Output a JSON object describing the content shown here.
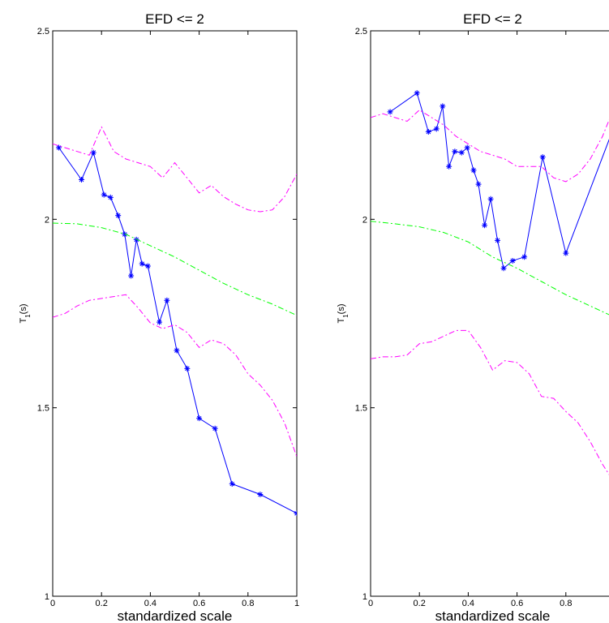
{
  "chart_data": [
    {
      "type": "line",
      "title": "EFD <= 2",
      "xlabel": "standardized scale",
      "ylabel": "T",
      "ylabel_sub": "1",
      "ylabel_suffix": "(s)",
      "xlim": [
        0,
        1
      ],
      "ylim": [
        1,
        2.5
      ],
      "xticks": [
        0,
        0.2,
        0.4,
        0.6,
        0.8,
        1
      ],
      "xtick_labels": [
        "0",
        "0.2",
        "0.4",
        "0.6",
        "0.8",
        "1"
      ],
      "yticks": [
        1,
        1.5,
        2,
        2.5
      ],
      "ytick_labels": [
        "1",
        "1.5",
        "2",
        "2.5"
      ],
      "grid": false,
      "series": [
        {
          "style": "solid-star",
          "color": "#0000ff",
          "x": [
            0.025,
            0.118,
            0.167,
            0.21,
            0.237,
            0.268,
            0.295,
            0.321,
            0.343,
            0.366,
            0.39,
            0.437,
            0.468,
            0.508,
            0.551,
            0.6,
            0.665,
            0.735,
            0.85,
            1.0
          ],
          "y": [
            2.19,
            2.105,
            2.177,
            2.065,
            2.058,
            2.01,
            1.96,
            1.85,
            1.946,
            1.882,
            1.876,
            1.727,
            1.785,
            1.652,
            1.604,
            1.472,
            1.445,
            1.298,
            1.27,
            1.22
          ]
        },
        {
          "style": "dashdot",
          "color": "#00ff00",
          "x": [
            0,
            0.1,
            0.2,
            0.3,
            0.4,
            0.5,
            0.6,
            0.7,
            0.8,
            0.9,
            1.0
          ],
          "y": [
            1.99,
            1.988,
            1.978,
            1.96,
            1.93,
            1.9,
            1.865,
            1.83,
            1.8,
            1.775,
            1.745
          ]
        },
        {
          "style": "dashdot",
          "color": "#ff00ff",
          "x": [
            0,
            0.05,
            0.1,
            0.15,
            0.2,
            0.25,
            0.3,
            0.35,
            0.4,
            0.45,
            0.5,
            0.55,
            0.6,
            0.65,
            0.7,
            0.75,
            0.8,
            0.85,
            0.9,
            0.95,
            1.0
          ],
          "y": [
            2.2,
            2.19,
            2.18,
            2.17,
            2.245,
            2.18,
            2.16,
            2.15,
            2.14,
            2.11,
            2.15,
            2.11,
            2.07,
            2.09,
            2.06,
            2.04,
            2.025,
            2.02,
            2.025,
            2.06,
            2.12
          ]
        },
        {
          "style": "dashdot",
          "color": "#ff00ff",
          "x": [
            0,
            0.05,
            0.1,
            0.15,
            0.2,
            0.25,
            0.3,
            0.35,
            0.4,
            0.45,
            0.5,
            0.55,
            0.6,
            0.65,
            0.7,
            0.75,
            0.8,
            0.85,
            0.9,
            0.95,
            1.0
          ],
          "y": [
            1.74,
            1.75,
            1.77,
            1.785,
            1.79,
            1.795,
            1.8,
            1.765,
            1.725,
            1.71,
            1.72,
            1.7,
            1.66,
            1.68,
            1.67,
            1.64,
            1.59,
            1.56,
            1.52,
            1.46,
            1.37
          ]
        }
      ]
    },
    {
      "type": "line",
      "title": "EFD <= 2",
      "xlabel": "standardized scale",
      "ylabel": "T",
      "ylabel_sub": "1",
      "ylabel_suffix": "(s)",
      "xlim": [
        0,
        1
      ],
      "ylim": [
        1,
        2.5
      ],
      "xticks": [
        0,
        0.2,
        0.4,
        0.6,
        0.8
      ],
      "xtick_labels": [
        "0",
        "0.2",
        "0.4",
        "0.6",
        "0.8"
      ],
      "yticks": [
        1,
        1.5,
        2,
        2.5
      ],
      "ytick_labels": [
        "1",
        "1.5",
        "2",
        "2.5"
      ],
      "grid": false,
      "series": [
        {
          "style": "solid-star",
          "color": "#0000ff",
          "x": [
            0.08,
            0.19,
            0.237,
            0.27,
            0.295,
            0.321,
            0.345,
            0.373,
            0.396,
            0.422,
            0.442,
            0.467,
            0.492,
            0.52,
            0.545,
            0.582,
            0.63,
            0.705,
            0.8,
            1.0
          ],
          "y": [
            2.285,
            2.335,
            2.232,
            2.24,
            2.3,
            2.14,
            2.18,
            2.177,
            2.19,
            2.13,
            2.093,
            1.984,
            2.054,
            1.944,
            1.87,
            1.89,
            1.9,
            2.165,
            1.91,
            2.25
          ]
        },
        {
          "style": "dashdot",
          "color": "#00ff00",
          "x": [
            0,
            0.1,
            0.2,
            0.3,
            0.4,
            0.5,
            0.6,
            0.7,
            0.8,
            0.9,
            1.0
          ],
          "y": [
            1.995,
            1.988,
            1.98,
            1.965,
            1.94,
            1.9,
            1.87,
            1.835,
            1.8,
            1.77,
            1.74
          ]
        },
        {
          "style": "dashdot",
          "color": "#ff00ff",
          "x": [
            0,
            0.05,
            0.1,
            0.15,
            0.2,
            0.25,
            0.3,
            0.35,
            0.4,
            0.45,
            0.5,
            0.55,
            0.6,
            0.65,
            0.7,
            0.75,
            0.8,
            0.85,
            0.9,
            0.95,
            1.0
          ],
          "y": [
            2.27,
            2.28,
            2.27,
            2.26,
            2.29,
            2.27,
            2.25,
            2.22,
            2.2,
            2.18,
            2.17,
            2.16,
            2.14,
            2.14,
            2.14,
            2.11,
            2.1,
            2.12,
            2.16,
            2.22,
            2.3
          ]
        },
        {
          "style": "dashdot",
          "color": "#ff00ff",
          "x": [
            0,
            0.05,
            0.1,
            0.15,
            0.2,
            0.25,
            0.3,
            0.35,
            0.4,
            0.45,
            0.5,
            0.55,
            0.6,
            0.65,
            0.7,
            0.75,
            0.8,
            0.85,
            0.9,
            0.95,
            1.0
          ],
          "y": [
            1.63,
            1.635,
            1.635,
            1.64,
            1.67,
            1.675,
            1.69,
            1.705,
            1.705,
            1.66,
            1.6,
            1.625,
            1.62,
            1.59,
            1.53,
            1.525,
            1.49,
            1.46,
            1.41,
            1.35,
            1.3
          ]
        }
      ]
    }
  ]
}
